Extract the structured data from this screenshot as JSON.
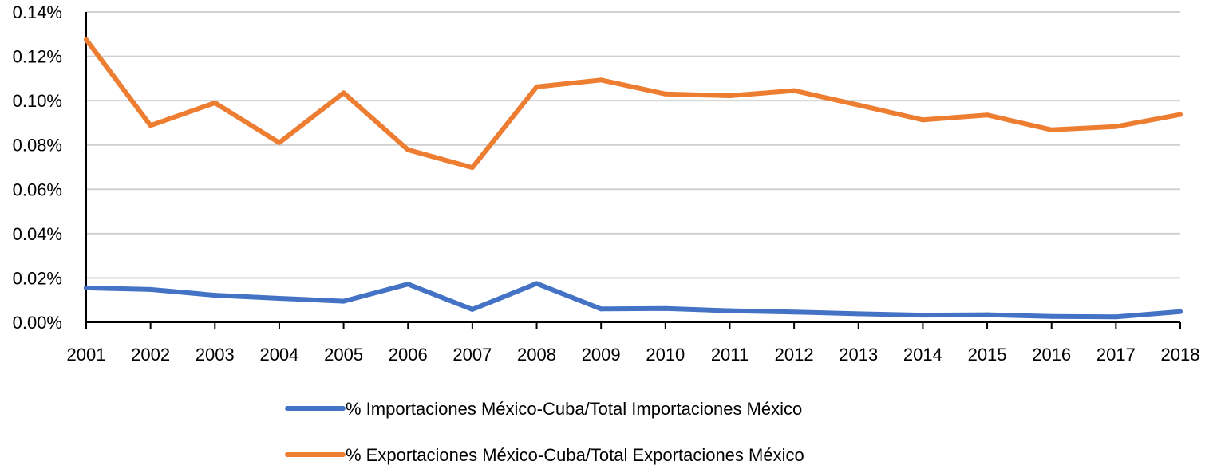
{
  "chart_data": {
    "type": "line",
    "title": "",
    "xlabel": "",
    "ylabel": "",
    "categories": [
      "2001",
      "2002",
      "2003",
      "2004",
      "2005",
      "2006",
      "2007",
      "2008",
      "2009",
      "2010",
      "2011",
      "2012",
      "2013",
      "2014",
      "2015",
      "2016",
      "2017",
      "2018"
    ],
    "y_ticks": [
      "0.00%",
      "0.02%",
      "0.04%",
      "0.06%",
      "0.08%",
      "0.10%",
      "0.12%",
      "0.14%"
    ],
    "ylim": [
      0,
      0.14
    ],
    "grid": true,
    "legend_position": "bottom",
    "series": [
      {
        "name": "% Importaciones México-Cuba/Total Importaciones México",
        "color": "#4472C4",
        "values": [
          0.0155,
          0.0148,
          0.0122,
          0.0108,
          0.0095,
          0.0172,
          0.0058,
          0.0175,
          0.006,
          0.0062,
          0.0052,
          0.0046,
          0.0038,
          0.0032,
          0.0034,
          0.0026,
          0.0024,
          0.0048
        ]
      },
      {
        "name": "% Exportaciones México-Cuba/Total Exportaciones México",
        "color": "#ED7D31",
        "values": [
          0.1275,
          0.0888,
          0.099,
          0.081,
          0.1035,
          0.0778,
          0.0698,
          0.1062,
          0.1093,
          0.103,
          0.1022,
          0.1045,
          0.098,
          0.0913,
          0.0935,
          0.0868,
          0.0883,
          0.0937
        ]
      }
    ]
  }
}
